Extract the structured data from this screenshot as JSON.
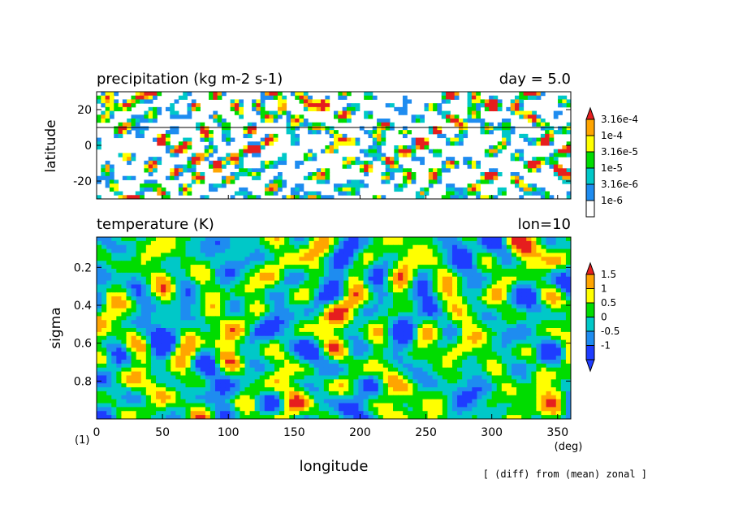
{
  "chart_data": [
    {
      "type": "heatmap",
      "title": "precipitation (kg m-2 s-1)",
      "annotation": "day = 5.0",
      "ylabel": "latitude",
      "xlim": [
        0,
        360
      ],
      "ylim": [
        -30,
        30
      ],
      "reference_line_y": 10,
      "y_ticks": [
        20,
        0,
        -20
      ],
      "y_tick_labels": [
        "20",
        "0",
        "-20"
      ],
      "colorbar": {
        "labels": [
          "3.16e-4",
          "1e-4",
          "3.16e-5",
          "1e-5",
          "3.16e-6",
          "1e-6"
        ],
        "colors": [
          "#ffffff",
          "#1e8cf0",
          "#00c8c8",
          "#00dc00",
          "#ffff00",
          "#ffa500",
          "#e61e1e"
        ]
      }
    },
    {
      "type": "heatmap",
      "title": "temperature (K)",
      "annotation": "lon=10",
      "ylabel": "sigma",
      "xlabel": "longitude",
      "x_unit": "(deg)",
      "xlim": [
        0,
        360
      ],
      "ylim": [
        1.0,
        0.04
      ],
      "x_ticks": [
        0,
        50,
        100,
        150,
        200,
        250,
        300,
        350
      ],
      "x_tick_labels": [
        "0",
        "50",
        "100",
        "150",
        "200",
        "250",
        "300",
        "350"
      ],
      "y_ticks": [
        0.2,
        0.4,
        0.6,
        0.8
      ],
      "y_tick_labels": [
        "0.2",
        "0.4",
        "0.6",
        "0.8"
      ],
      "colorbar": {
        "labels": [
          "1.5",
          "1",
          "0.5",
          "0",
          "-0.5",
          "-1"
        ],
        "colors": [
          "#1e3cff",
          "#1e8cf0",
          "#00c8c8",
          "#00dc00",
          "#ffff00",
          "#ffa500",
          "#e61e1e"
        ]
      }
    }
  ],
  "figure": {
    "panel_label": "(1)",
    "footnote": "[ (diff) from (mean) zonal ]"
  }
}
